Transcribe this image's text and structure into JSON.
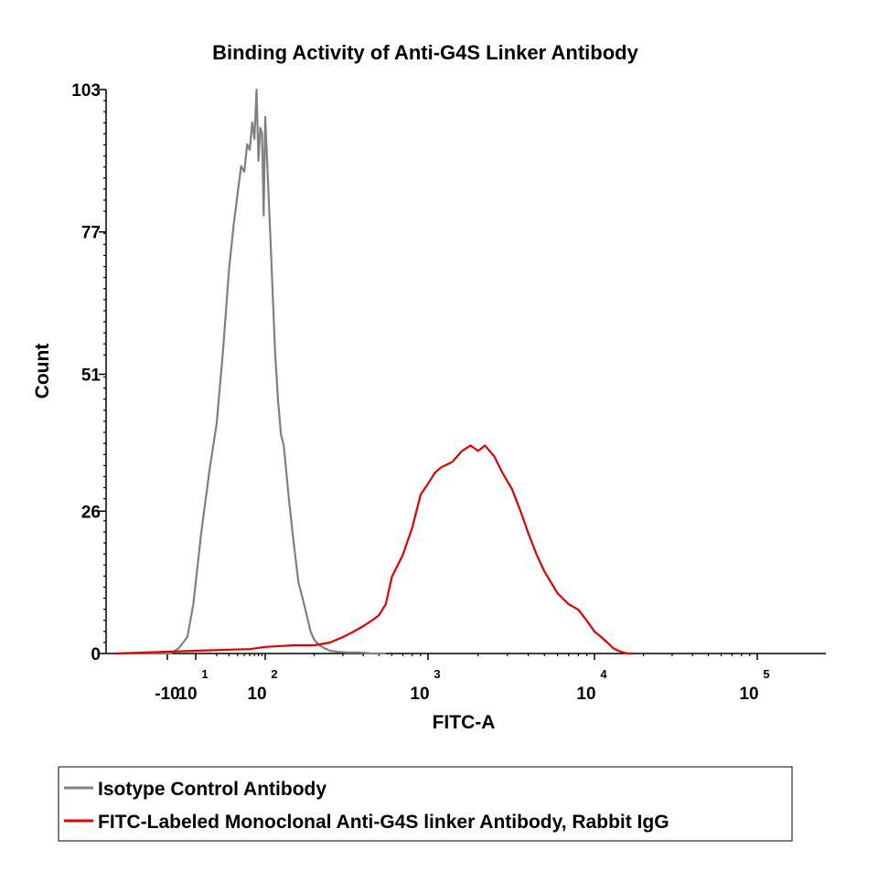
{
  "chart_data": {
    "type": "line",
    "title": "Binding Activity of Anti-G4S Linker Antibody",
    "xlabel": "FITC-A",
    "ylabel": "Count",
    "x_scale": "biexponential (log above ~10)",
    "xlim": [
      -20,
      400000
    ],
    "ylim": [
      0,
      103
    ],
    "y_ticks": [
      "0",
      "26",
      "51",
      "77",
      "103"
    ],
    "x_ticks": [
      {
        "label": "-10",
        "exp": ""
      },
      {
        "label": "10",
        "exp": "1"
      },
      {
        "label": "10",
        "exp": "2"
      },
      {
        "label": "10",
        "exp": "3"
      },
      {
        "label": "10",
        "exp": "4"
      },
      {
        "label": "10",
        "exp": "5"
      }
    ],
    "grid": false,
    "legend_position": "bottom",
    "series": [
      {
        "name": "Isotype Control Antibody",
        "color": "#808080",
        "x": [
          -20,
          -8,
          -3,
          3,
          8,
          12,
          16,
          20,
          25,
          30,
          35,
          40,
          45,
          50,
          55,
          60,
          65,
          70,
          75,
          80,
          85,
          90,
          95,
          100,
          108,
          115,
          120,
          125,
          130,
          140,
          150,
          160,
          170,
          180,
          190,
          200,
          215,
          230,
          250,
          280,
          320,
          380,
          450,
          550
        ],
        "y": [
          0,
          0,
          1,
          3,
          9,
          22,
          34,
          42,
          56,
          70,
          78,
          84,
          89,
          88,
          93,
          92,
          97,
          94,
          103,
          90,
          96,
          95,
          80,
          98,
          75,
          55,
          46,
          40,
          38,
          28,
          20,
          13,
          10,
          7,
          4,
          2.5,
          1.5,
          1,
          0.5,
          0.3,
          0.2,
          0.2,
          0,
          0
        ]
      },
      {
        "name": "FITC-Labeled Monoclonal Anti-G4S linker Antibody, Rabbit IgG",
        "color": "#e00000",
        "x": [
          -20,
          10,
          30,
          60,
          100,
          150,
          200,
          250,
          300,
          350,
          400,
          450,
          500,
          550,
          600,
          700,
          800,
          900,
          1000,
          1100,
          1200,
          1400,
          1600,
          1800,
          2000,
          2200,
          2500,
          2800,
          3200,
          3600,
          4000,
          4500,
          5000,
          6000,
          7000,
          8000,
          9000,
          10000,
          11000,
          12000,
          13000,
          14000,
          15000,
          16000,
          17000
        ],
        "y": [
          0,
          0.5,
          0.7,
          0.8,
          1.2,
          1.5,
          1.5,
          2,
          3,
          4,
          5,
          6,
          7,
          9,
          14,
          18,
          23,
          29,
          31,
          33,
          34,
          35,
          37,
          38,
          37,
          38,
          36,
          33,
          30,
          26,
          22,
          18,
          15,
          11,
          9,
          8,
          6,
          4,
          3,
          2,
          1,
          0.5,
          0.2,
          0,
          0
        ]
      }
    ]
  }
}
